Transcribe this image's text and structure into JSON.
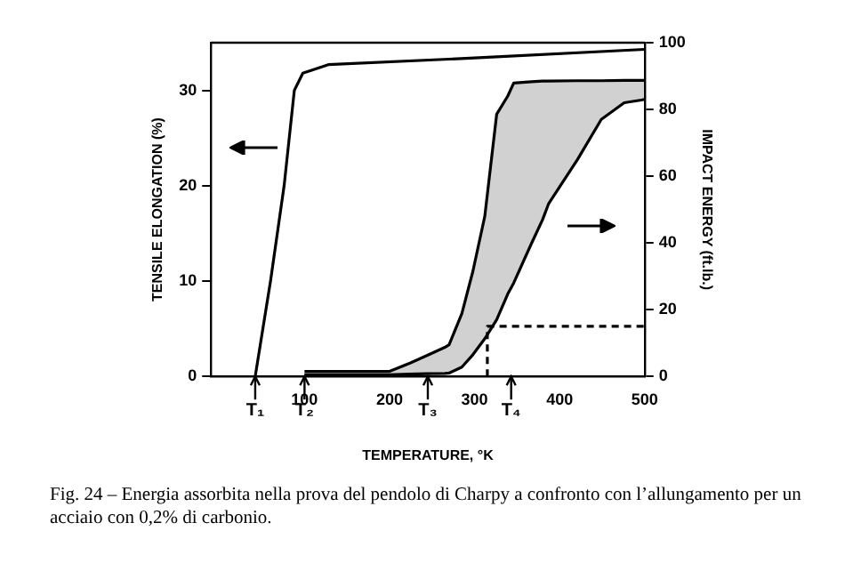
{
  "chart_data": {
    "type": "line",
    "xlabel": "TEMPERATURE, °K",
    "ylabel": "TENSILE ELONGATION (%)",
    "y2label": "IMPACT ENERGY (ft.lb.)",
    "xlim": [
      -10,
      500
    ],
    "xticks": [
      100,
      200,
      300,
      400,
      500
    ],
    "ylim": [
      0,
      35
    ],
    "yticks": [
      0,
      10,
      20,
      30
    ],
    "y2lim": [
      0,
      100
    ],
    "y2ticks": [
      0,
      20,
      40,
      60,
      80,
      100
    ],
    "grid": false,
    "legend": false,
    "marker": "none",
    "series": [
      {
        "axis": "y",
        "color": "#000000",
        "x": [
          42,
          60,
          76,
          88,
          98,
          128,
          300,
          500
        ],
        "values": [
          0,
          10,
          20,
          30,
          31.8,
          32.7,
          33.4,
          34.3
        ]
      },
      {
        "axis": "y2",
        "color": "#000000",
        "x": [
          100,
          200,
          224,
          245,
          265,
          270,
          285,
          298,
          312,
          326,
          339,
          346,
          367,
          380,
          387,
          421,
          449,
          476,
          496,
          500
        ],
        "values": [
          1.5,
          1.5,
          4,
          6.4,
          8.7,
          9.5,
          18.8,
          31.5,
          48,
          78.6,
          84,
          87.9,
          88.3,
          88.5,
          88.5,
          88.6,
          88.6,
          88.7,
          88.7,
          88.7
        ],
        "upper": [
          1.5,
          1.5,
          4,
          6.4,
          8.7,
          9.5,
          18.8,
          31.5,
          48,
          78.6,
          84,
          87.9,
          88.3,
          88.5,
          88.5,
          88.6,
          88.6,
          88.7,
          88.7,
          88.7
        ],
        "lower": [
          0.5,
          0.5,
          0.7,
          0.8,
          0.9,
          1,
          2.8,
          6.5,
          11.3,
          17,
          24.7,
          28,
          39.9,
          47,
          51.7,
          65,
          77,
          82,
          82.8,
          83
        ]
      },
      {
        "axis": "y2",
        "color": "#000000",
        "x": [
          100,
          200,
          224,
          245,
          265,
          270,
          285,
          298,
          312,
          326,
          339,
          346,
          367,
          380,
          387,
          421,
          449,
          476,
          496,
          500
        ],
        "values": [
          0.5,
          0.5,
          0.7,
          0.8,
          0.9,
          1,
          2.8,
          6.5,
          11.3,
          17,
          24.7,
          28,
          39.9,
          47,
          51.7,
          65,
          77,
          82,
          82.8,
          83
        ]
      },
      {
        "axis": "y2",
        "color": "#000000",
        "line_style": "dashed",
        "x": [
          315,
          315,
          500
        ],
        "values": [
          0,
          15,
          15
        ]
      }
    ],
    "annotations": [
      {
        "text": "T₁",
        "x": 42
      },
      {
        "text": "T₂",
        "x": 100
      },
      {
        "text": "T₃",
        "x": 245
      },
      {
        "text": "T₄",
        "x": 343
      },
      "Fig. 24 – Energia assorbita nella prova del pendolo di Charpy a confronto con l’allungamento per un acciaio con 0,2% di carbonio."
    ]
  }
}
